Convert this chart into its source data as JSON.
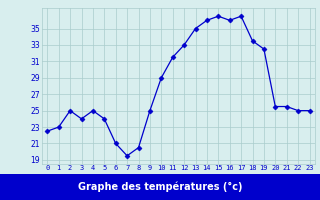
{
  "hours": [
    0,
    1,
    2,
    3,
    4,
    5,
    6,
    7,
    8,
    9,
    10,
    11,
    12,
    13,
    14,
    15,
    16,
    17,
    18,
    19,
    20,
    21,
    22,
    23
  ],
  "temps": [
    22.5,
    23.0,
    25.0,
    24.0,
    25.0,
    24.0,
    21.0,
    19.5,
    20.5,
    25.0,
    29.0,
    31.5,
    33.0,
    35.0,
    36.0,
    36.5,
    36.0,
    36.5,
    33.5,
    32.5,
    25.5,
    25.5,
    25.0,
    25.0
  ],
  "line_color": "#0000cc",
  "marker": "D",
  "marker_size": 2.5,
  "bg_color": "#d8eeee",
  "grid_color": "#aacccc",
  "xlabel": "Graphe des températures (°c)",
  "xlabel_color": "#ffffff",
  "xlabel_bg": "#0000cc",
  "ylabel_ticks": [
    19,
    21,
    23,
    25,
    27,
    29,
    31,
    33,
    35
  ],
  "ylim": [
    18.5,
    37.5
  ],
  "xlim": [
    -0.5,
    23.5
  ],
  "tick_label_color": "#0000cc",
  "xtick_fontsize": 5.0,
  "ytick_fontsize": 5.5
}
